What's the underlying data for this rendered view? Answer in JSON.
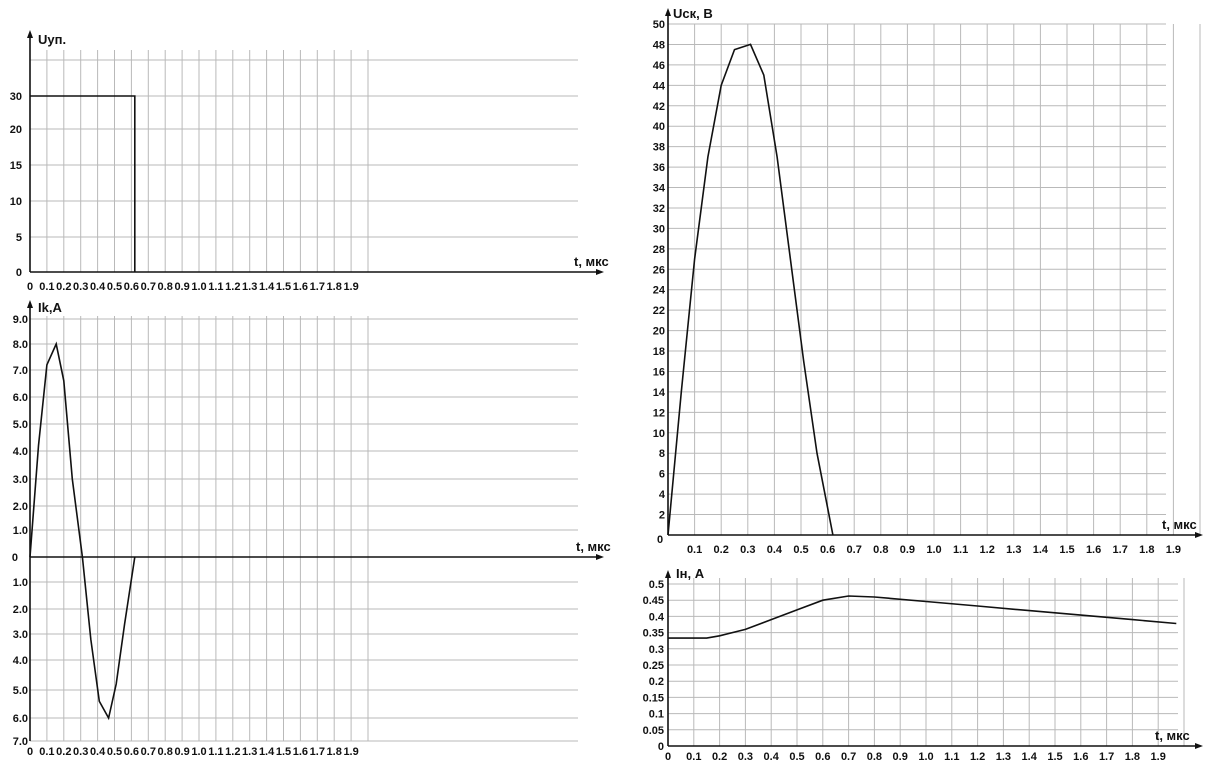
{
  "chart_data": [
    {
      "id": "uup",
      "type": "line",
      "ylabel": "Uуп.",
      "xlabel": "t, мкс",
      "x_ticks": [
        "0",
        "0.1",
        "0.2",
        "0.3",
        "0.4",
        "0.5",
        "0.6",
        "0.7",
        "0.8",
        "0.9",
        "1.0",
        "1.1",
        "1.2",
        "1.3",
        "1.4",
        "1.5",
        "1.6",
        "1.7",
        "1.8",
        "1.9"
      ],
      "y_ticks": [
        "0",
        "5",
        "10",
        "15",
        "20",
        "30"
      ],
      "xlim": [
        0,
        2.0
      ],
      "ylim": [
        0,
        35
      ],
      "grid": true,
      "series": [
        {
          "x": [
            0,
            0.62,
            0.62
          ],
          "y": [
            30,
            30,
            0
          ]
        }
      ]
    },
    {
      "id": "ik",
      "type": "line",
      "ylabel": "Ik,A",
      "xlabel": "t, мкс",
      "x_ticks": [
        "0",
        "0.1",
        "0.2",
        "0.3",
        "0.4",
        "0.5",
        "0.6",
        "0.7",
        "0.8",
        "0.9",
        "1.0",
        "1.1",
        "1.2",
        "1.3",
        "1.4",
        "1.5",
        "1.6",
        "1.7",
        "1.8",
        "1.9"
      ],
      "y_ticks_pos": [
        "1.0",
        "2.0",
        "3.0",
        "4.0",
        "5.0",
        "6.0",
        "7.0",
        "8.0",
        "9.0"
      ],
      "y_ticks_neg": [
        "1.0",
        "2.0",
        "3.0",
        "4.0",
        "5.0",
        "6.0",
        "7.0"
      ],
      "zero_label": "0",
      "xlim": [
        0,
        2.0
      ],
      "ylim": [
        -7,
        9
      ],
      "grid": true,
      "series": [
        {
          "x": [
            0,
            0.05,
            0.1,
            0.155,
            0.2,
            0.25,
            0.31,
            0.36,
            0.41,
            0.465,
            0.51,
            0.56,
            0.62
          ],
          "y": [
            0,
            4.2,
            7.2,
            8.0,
            6.6,
            3.0,
            0,
            -3.2,
            -5.4,
            -6.0,
            -4.8,
            -2.6,
            0
          ]
        }
      ]
    },
    {
      "id": "usk",
      "type": "line",
      "ylabel": "Uск, В",
      "xlabel": "t, мкс",
      "x_ticks": [
        "0",
        "0.1",
        "0.2",
        "0.3",
        "0.4",
        "0.5",
        "0.6",
        "0.7",
        "0.8",
        "0.9",
        "1.0",
        "1.1",
        "1.2",
        "1.3",
        "1.4",
        "1.5",
        "1.6",
        "1.7",
        "1.8",
        "1.9"
      ],
      "y_ticks": [
        "2",
        "4",
        "6",
        "8",
        "10",
        "12",
        "14",
        "16",
        "18",
        "20",
        "22",
        "24",
        "26",
        "28",
        "30",
        "32",
        "34",
        "36",
        "38",
        "40",
        "42",
        "44",
        "46",
        "48",
        "50"
      ],
      "zero_label": "0",
      "xlim": [
        0,
        2.0
      ],
      "ylim": [
        0,
        50
      ],
      "grid": true,
      "series": [
        {
          "x": [
            0,
            0.05,
            0.1,
            0.15,
            0.2,
            0.25,
            0.31,
            0.36,
            0.41,
            0.46,
            0.51,
            0.56,
            0.62
          ],
          "y": [
            0,
            14,
            27,
            37,
            44,
            47.5,
            48,
            45,
            37,
            27,
            17,
            8,
            0
          ]
        }
      ]
    },
    {
      "id": "in",
      "type": "line",
      "ylabel": "Iн, А",
      "xlabel": "t, мкс",
      "x_ticks": [
        "0",
        "0.1",
        "0.2",
        "0.3",
        "0.4",
        "0.5",
        "0.6",
        "0.7",
        "0.8",
        "0.9",
        "1.0",
        "1.1",
        "1.2",
        "1.3",
        "1.4",
        "1.5",
        "1.6",
        "1.7",
        "1.8",
        "1.9"
      ],
      "y_ticks": [
        "0",
        "0.05",
        "0.1",
        "0.15",
        "0.2",
        "0.25",
        "0.3",
        "0.35",
        "0.4",
        "0.45",
        "0.5"
      ],
      "xlim": [
        0,
        2.0
      ],
      "ylim": [
        0,
        0.5
      ],
      "grid": true,
      "series": [
        {
          "x": [
            0,
            0.15,
            0.2,
            0.3,
            0.4,
            0.5,
            0.6,
            0.7,
            0.8,
            1.0,
            1.2,
            1.4,
            1.6,
            1.8,
            1.97
          ],
          "y": [
            0.333,
            0.333,
            0.34,
            0.36,
            0.39,
            0.42,
            0.45,
            0.463,
            0.46,
            0.446,
            0.432,
            0.418,
            0.404,
            0.39,
            0.378
          ]
        }
      ]
    }
  ]
}
